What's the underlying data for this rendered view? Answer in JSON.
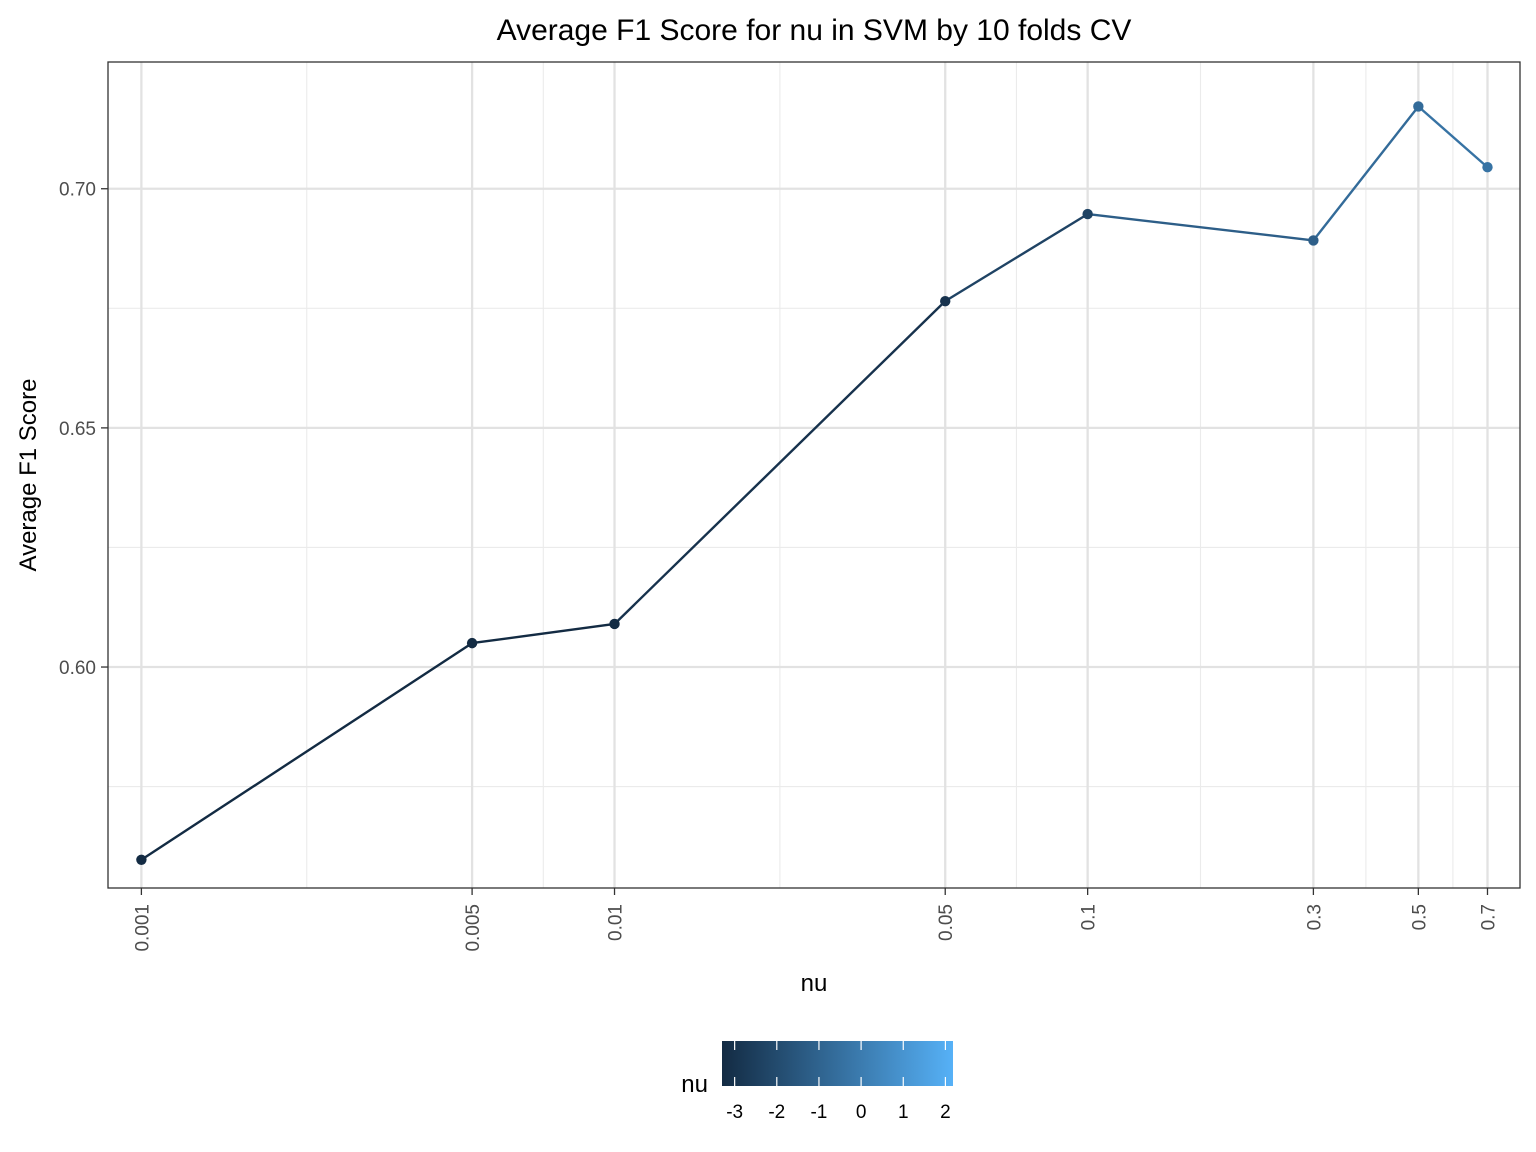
{
  "chart_data": {
    "type": "line",
    "title": "Average F1 Score for nu in SVM by 10 folds CV",
    "xlabel": "nu",
    "ylabel": "Average F1 Score",
    "x_scale": "log",
    "x_range": [
      0.00085,
      0.82
    ],
    "ylim": [
      0.5538,
      0.7265
    ],
    "x_tick_labels": [
      "0.001",
      "0.005",
      "0.01",
      "0.05",
      "0.1",
      "0.3",
      "0.5",
      "0.7"
    ],
    "y_ticks": [
      0.6,
      0.65,
      0.7
    ],
    "y_tick_labels": [
      "0.60",
      "0.65",
      "0.70"
    ],
    "grid": true,
    "series": [
      {
        "x": [
          0.001,
          0.005,
          0.01,
          0.05,
          0.1,
          0.3,
          0.5,
          0.7
        ],
        "y": [
          0.5597,
          0.605,
          0.609,
          0.6765,
          0.6947,
          0.6892,
          0.7172,
          0.7045
        ]
      }
    ],
    "legend": {
      "title": "nu",
      "position": "bottom",
      "type": "colorbar",
      "tick_labels": [
        "-3",
        "-2",
        "-1",
        "0",
        "1",
        "2"
      ],
      "color_low": "#132B43",
      "color_high": "#56B1F7"
    }
  }
}
